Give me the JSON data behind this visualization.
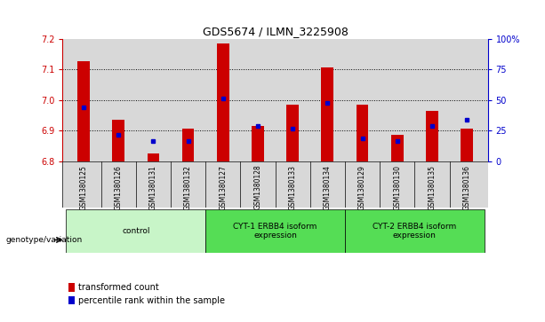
{
  "title": "GDS5674 / ILMN_3225908",
  "samples": [
    "GSM1380125",
    "GSM1380126",
    "GSM1380131",
    "GSM1380132",
    "GSM1380127",
    "GSM1380128",
    "GSM1380133",
    "GSM1380134",
    "GSM1380129",
    "GSM1380130",
    "GSM1380135",
    "GSM1380136"
  ],
  "bar_tops": [
    7.125,
    6.935,
    6.825,
    6.905,
    7.185,
    6.915,
    6.985,
    7.105,
    6.985,
    6.885,
    6.965,
    6.905
  ],
  "blue_dots": [
    6.975,
    6.885,
    6.865,
    6.865,
    7.005,
    6.915,
    6.905,
    6.99,
    6.875,
    6.865,
    6.915,
    6.935
  ],
  "bar_base": 6.8,
  "ylim_left": [
    6.8,
    7.2
  ],
  "ylim_right": [
    0,
    100
  ],
  "yticks_left": [
    6.8,
    6.9,
    7.0,
    7.1,
    7.2
  ],
  "yticks_right": [
    0,
    25,
    50,
    75,
    100
  ],
  "ytick_labels_right": [
    "0",
    "25",
    "50",
    "75",
    "100%"
  ],
  "group_configs": [
    {
      "label": "control",
      "start": 0,
      "end": 3,
      "color": "#c8f5c8"
    },
    {
      "label": "CYT-1 ERBB4 isoform\nexpression",
      "start": 4,
      "end": 7,
      "color": "#55dd55"
    },
    {
      "label": "CYT-2 ERBB4 isoform\nexpression",
      "start": 8,
      "end": 11,
      "color": "#55dd55"
    }
  ],
  "bar_color": "#cc0000",
  "dot_color": "#0000cc",
  "bg_color_chart": "#d8d8d8",
  "left_axis_color": "#cc0000",
  "right_axis_color": "#0000cc",
  "legend_red_label": "transformed count",
  "legend_blue_label": "percentile rank within the sample",
  "genotype_label": "genotype/variation"
}
